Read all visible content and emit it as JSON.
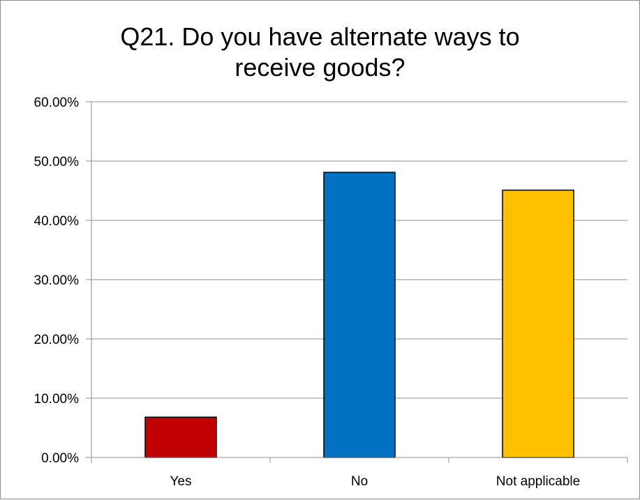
{
  "chart_data": {
    "type": "bar",
    "title": "Q21. Do you have alternate ways to\nreceive goods?",
    "categories": [
      "Yes",
      "No",
      "Not applicable"
    ],
    "values": [
      0.068,
      0.481,
      0.451
    ],
    "colors": [
      "#C00000",
      "#0070C0",
      "#FFC000"
    ],
    "ylim": [
      0,
      0.6
    ],
    "yticks": [
      0,
      0.1,
      0.2,
      0.3,
      0.4,
      0.5,
      0.6
    ],
    "ytick_labels": [
      "0.00%",
      "10.00%",
      "20.00%",
      "30.00%",
      "40.00%",
      "50.00%",
      "60.00%"
    ],
    "grid": true,
    "legend": "none",
    "xlabel": "",
    "ylabel": ""
  }
}
